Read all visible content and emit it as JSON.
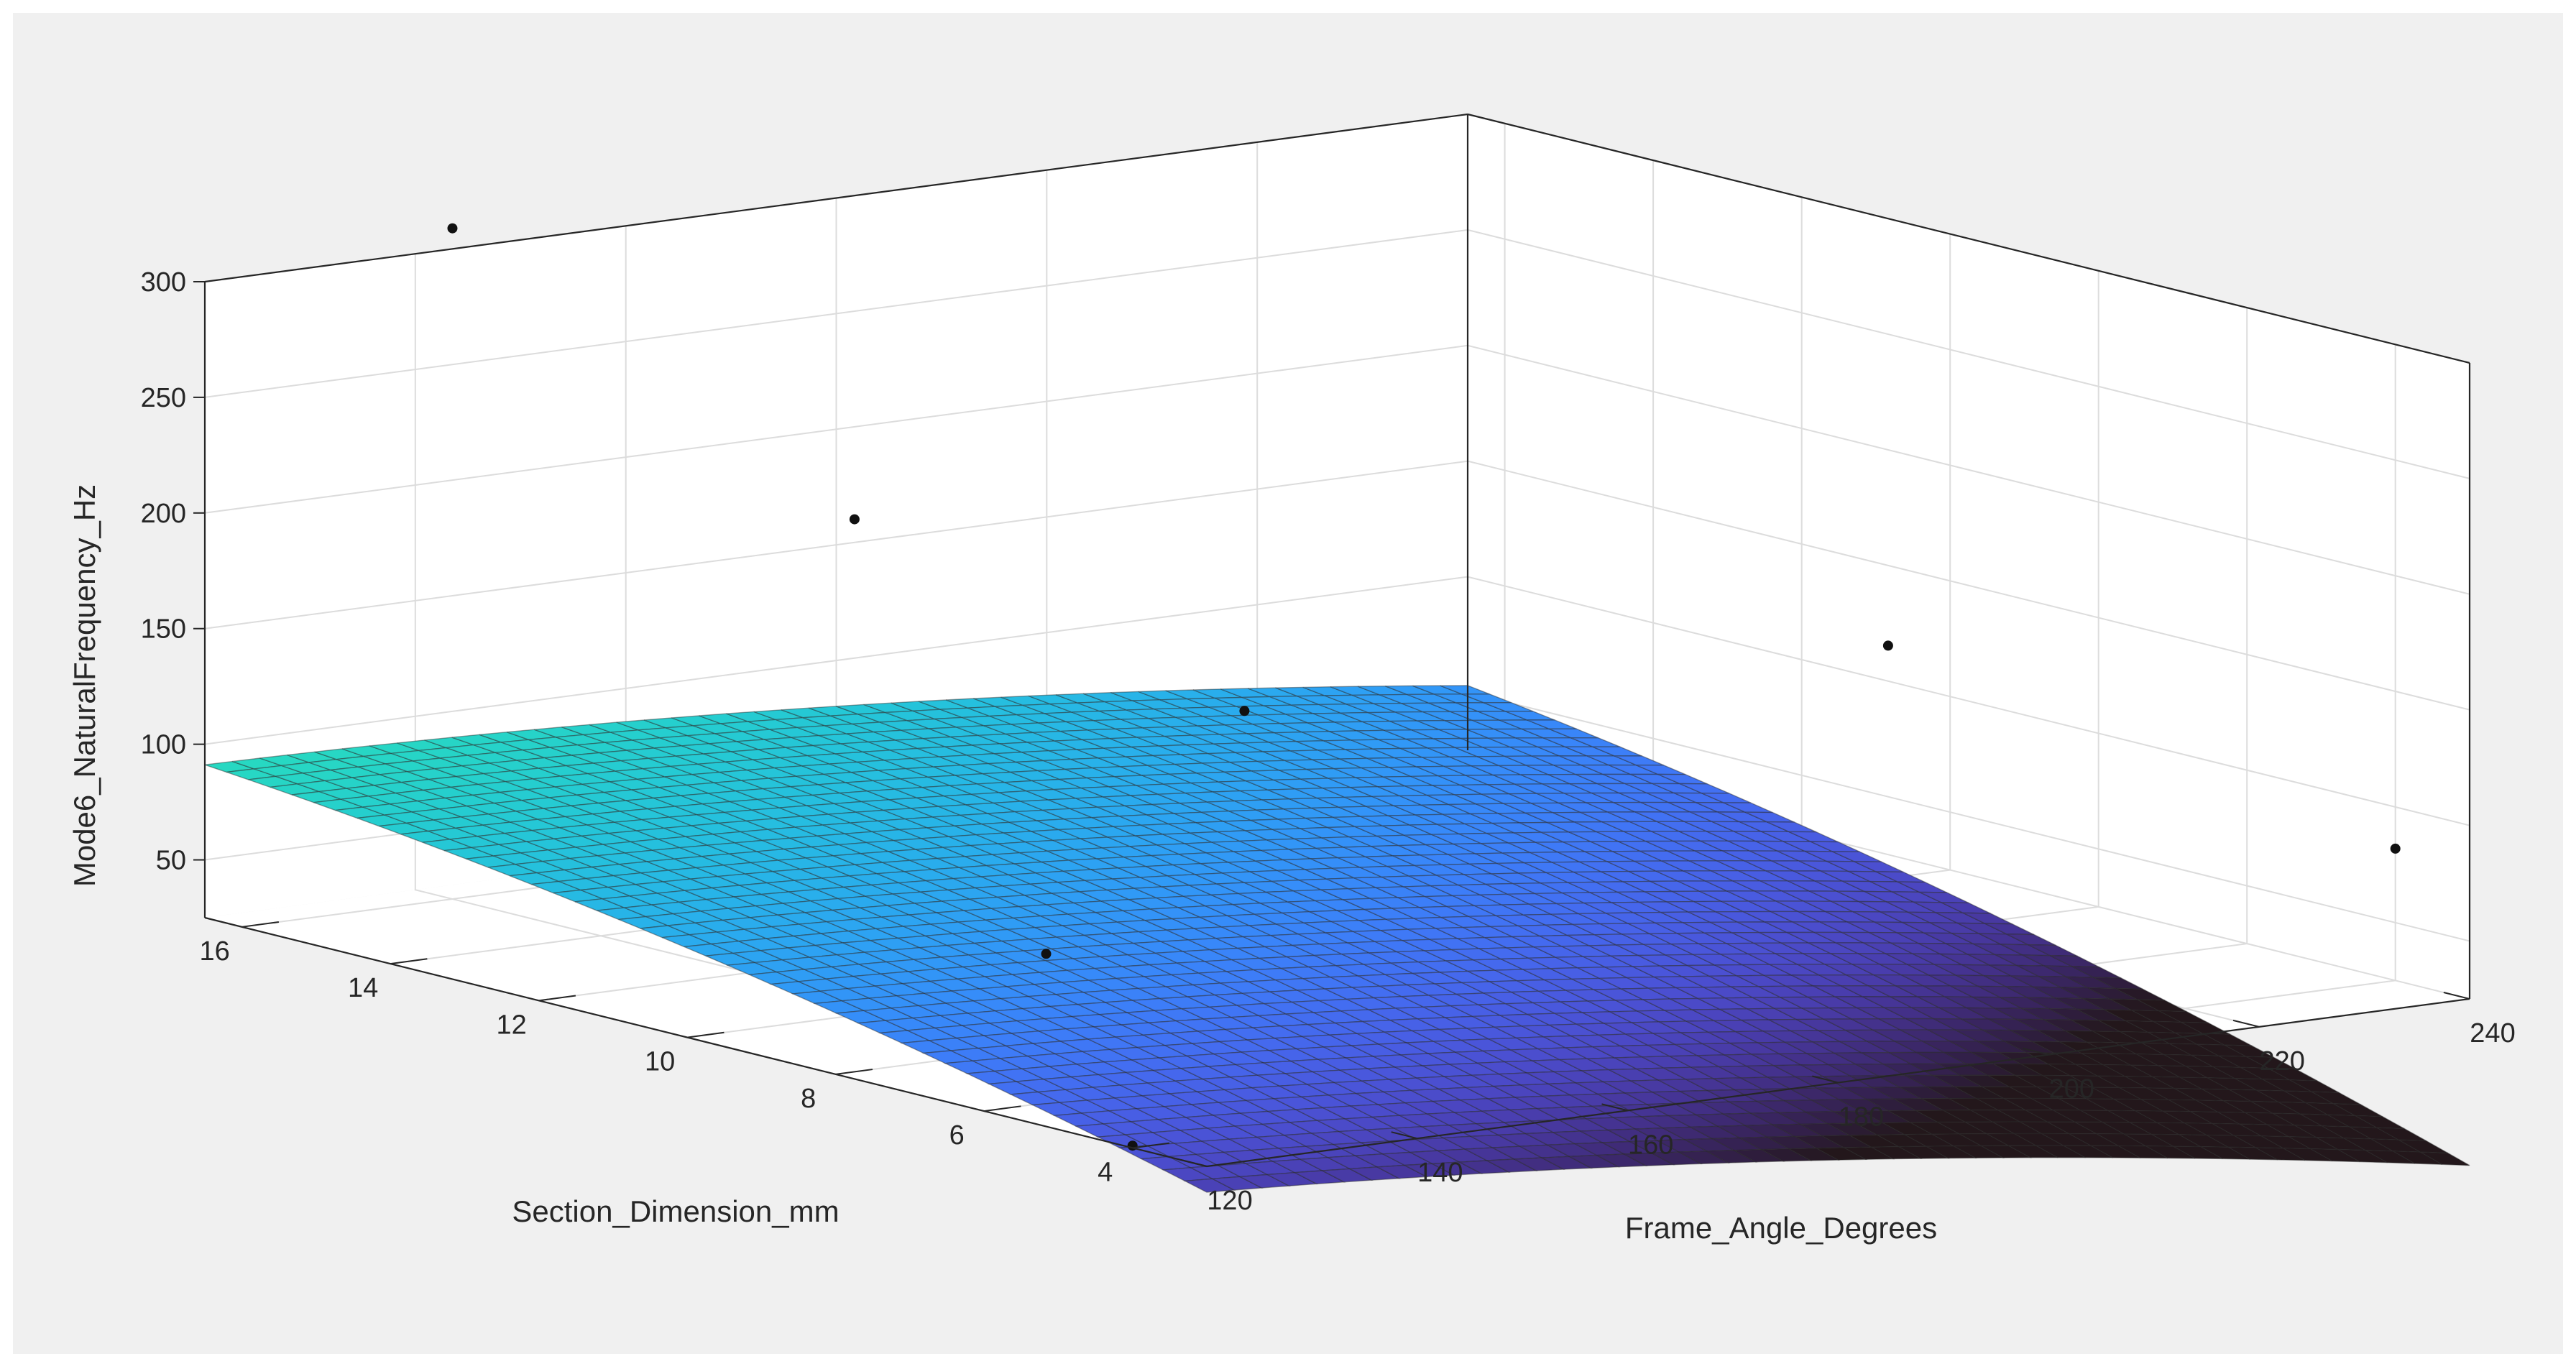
{
  "chart_data": {
    "type": "surface",
    "title": "",
    "xlabel": "Frame_Angle_Degrees",
    "ylabel": "Section_Dimension_mm",
    "zlabel": "Mode6_NaturalFrequency_Hz",
    "xlim": [
      120,
      240
    ],
    "ylim": [
      3,
      16.5
    ],
    "zlim": [
      25,
      300
    ],
    "x_ticks": [
      120,
      140,
      160,
      180,
      200,
      220,
      240
    ],
    "y_ticks": [
      4,
      6,
      8,
      10,
      12,
      14,
      16
    ],
    "z_ticks": [
      50,
      100,
      150,
      200,
      250,
      300
    ],
    "grid": true,
    "colormap": "turbo",
    "colors": {
      "figure_background": "#f0f0f0",
      "axes_background": "#ffffff",
      "grid": "#dcdcdc",
      "axis_line": "#262626",
      "mesh_edge": "#2a2a2a",
      "point": "#111111"
    },
    "surface_model": "z = -13.5 + 0.2685*x + 0.014*x*y + 8.22*y - 0.00227*x^2 - 0.214*y^2",
    "points": [
      {
        "x": 140,
        "y": 16,
        "z": 315
      },
      {
        "x": 150,
        "y": 12,
        "z": 215
      },
      {
        "x": 180,
        "y": 11,
        "z": 122
      },
      {
        "x": 220,
        "y": 8,
        "z": 150
      },
      {
        "x": 240,
        "y": 4,
        "z": 82
      },
      {
        "x": 140,
        "y": 8,
        "z": 65
      },
      {
        "x": 120,
        "y": 4,
        "z": 26
      }
    ]
  }
}
